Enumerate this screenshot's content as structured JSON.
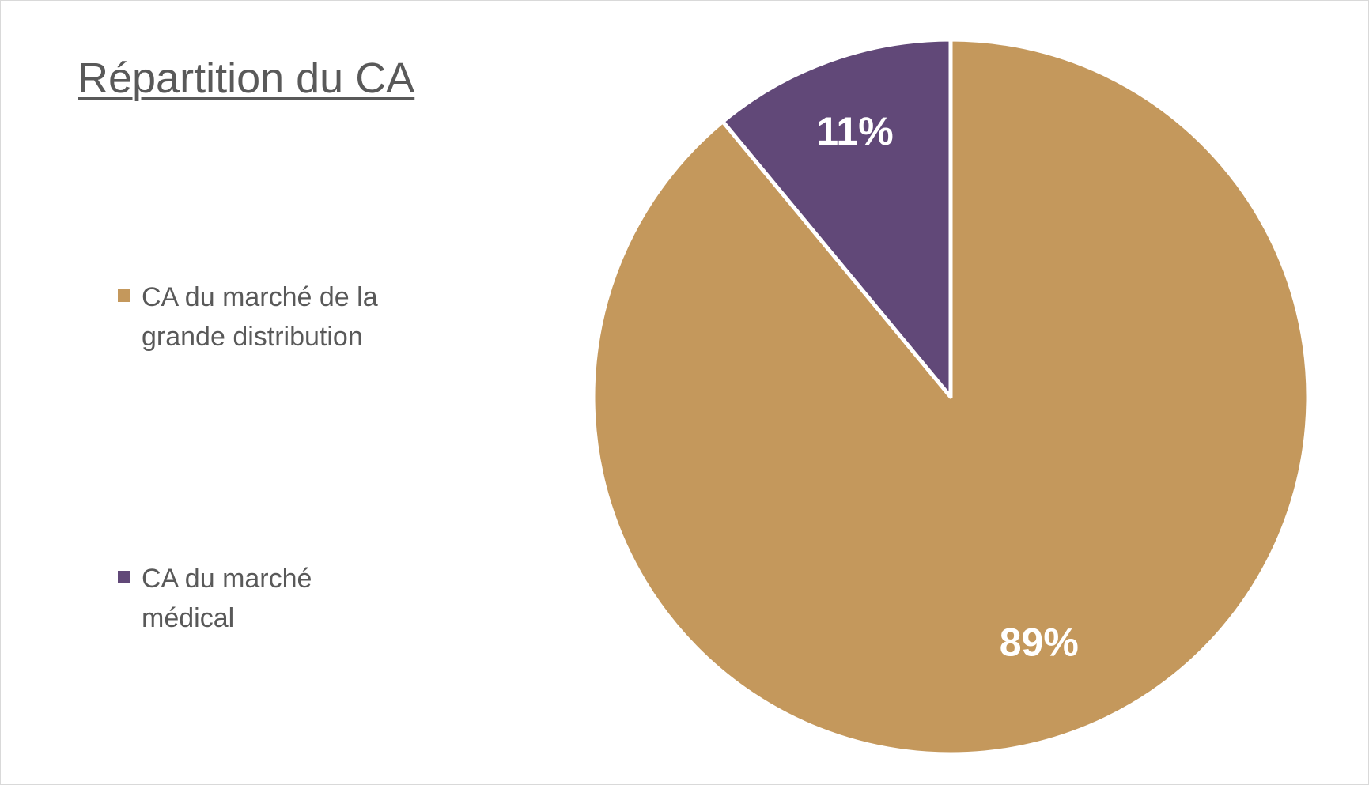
{
  "chart_data": {
    "type": "pie",
    "title": "Répartition du CA",
    "categories": [
      "CA du marché de la grande distribution",
      "CA du marché médical"
    ],
    "values": [
      89,
      11
    ],
    "data_labels": [
      "89%",
      "11%"
    ],
    "colors": [
      "#C4985C",
      "#614878"
    ],
    "legend_position": "left",
    "start_angle": "12 o'clock",
    "direction": "clockwise"
  }
}
